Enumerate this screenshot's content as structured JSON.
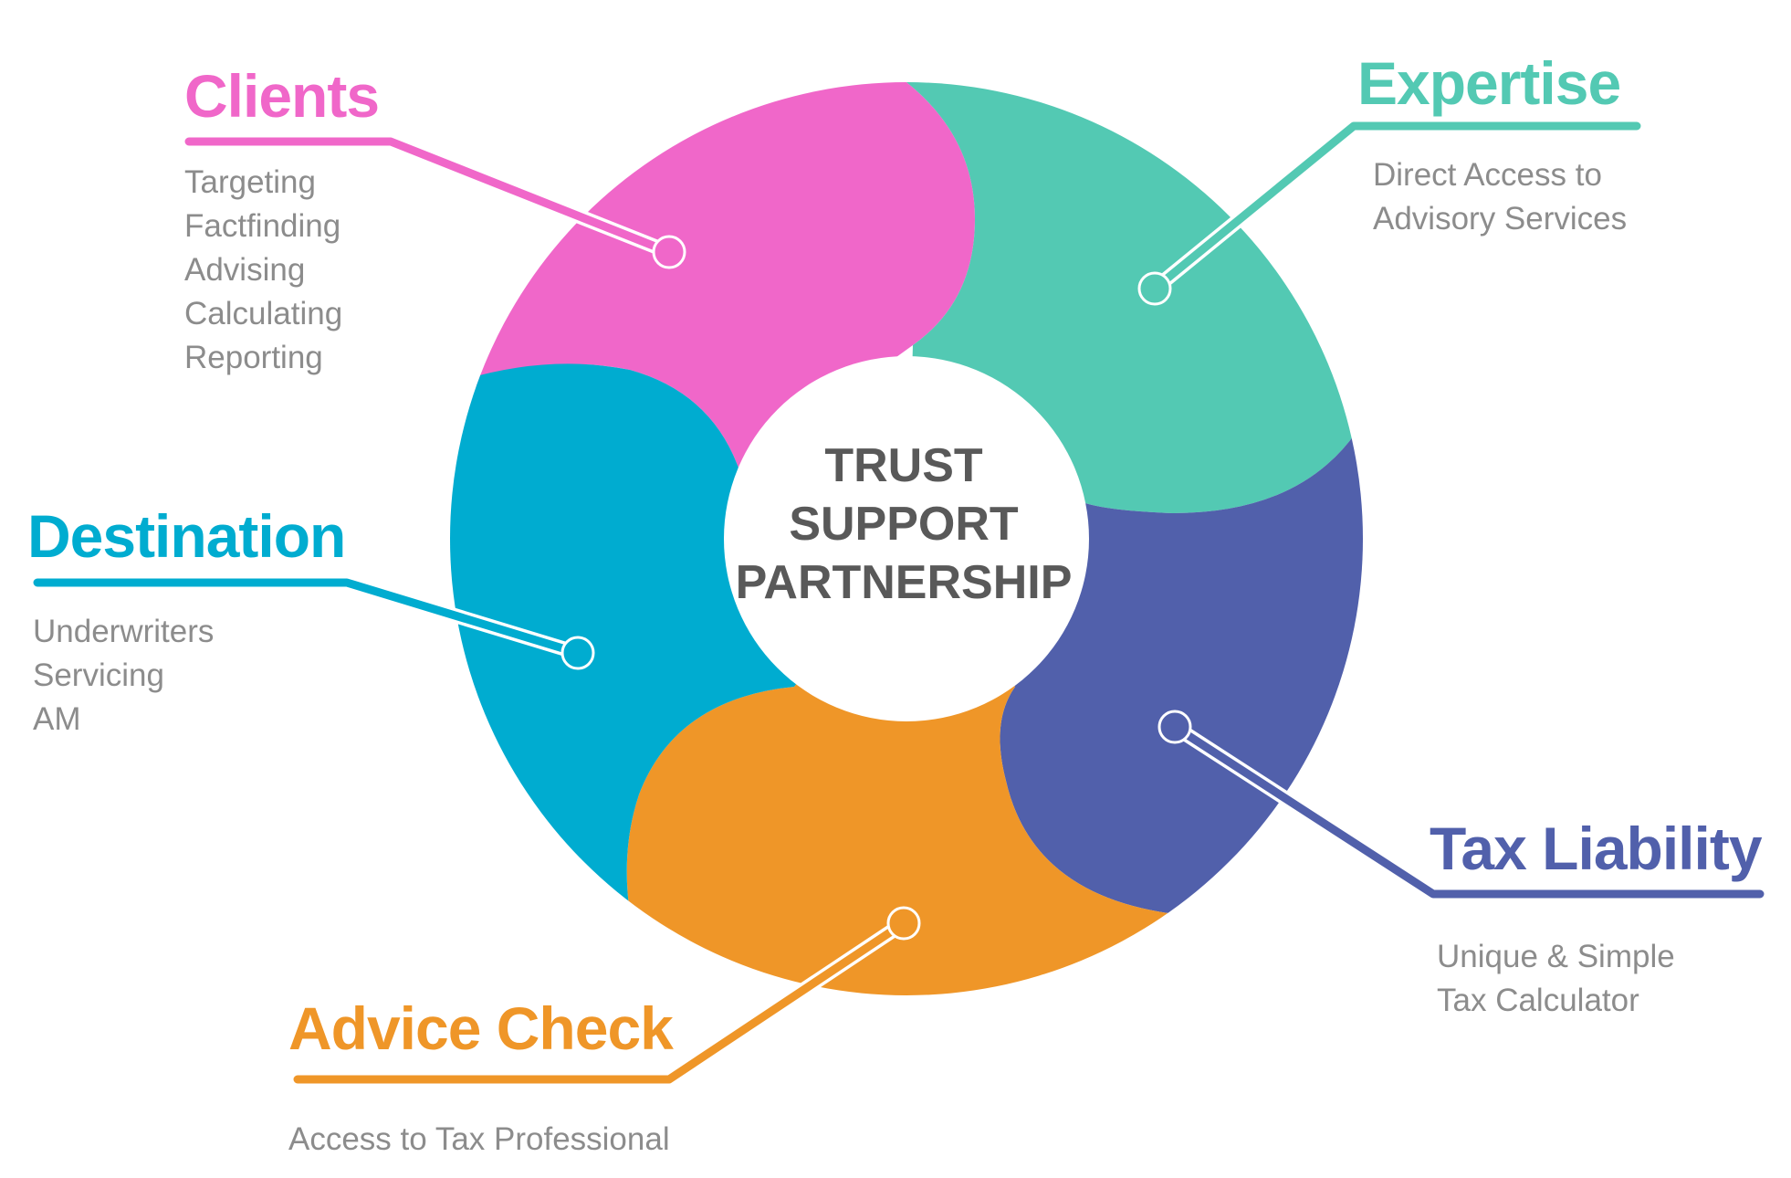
{
  "center": {
    "lines": [
      "TRUST",
      "SUPPORT",
      "PARTNERSHIP"
    ]
  },
  "colors": {
    "clients": "#f067c9",
    "expertise": "#53c9b3",
    "tax_liability": "#5160ab",
    "advice_check": "#ef9628",
    "destination": "#00acd0",
    "description_text": "#8c8c8c",
    "center_text": "#595959"
  },
  "segments": {
    "clients": {
      "title": "Clients",
      "items": [
        "Targeting",
        "Factfinding",
        "Advising",
        "Calculating",
        "Reporting"
      ]
    },
    "expertise": {
      "title": "Expertise",
      "items": [
        "Direct Access to",
        "Advisory Services"
      ]
    },
    "destination": {
      "title": "Destination",
      "items": [
        "Underwriters",
        "Servicing",
        "AM"
      ]
    },
    "tax_liability": {
      "title": "Tax Liability",
      "items": [
        "Unique & Simple",
        "Tax Calculator"
      ]
    },
    "advice_check": {
      "title": "Advice Check",
      "items": [
        "Access to Tax Professional"
      ]
    }
  }
}
